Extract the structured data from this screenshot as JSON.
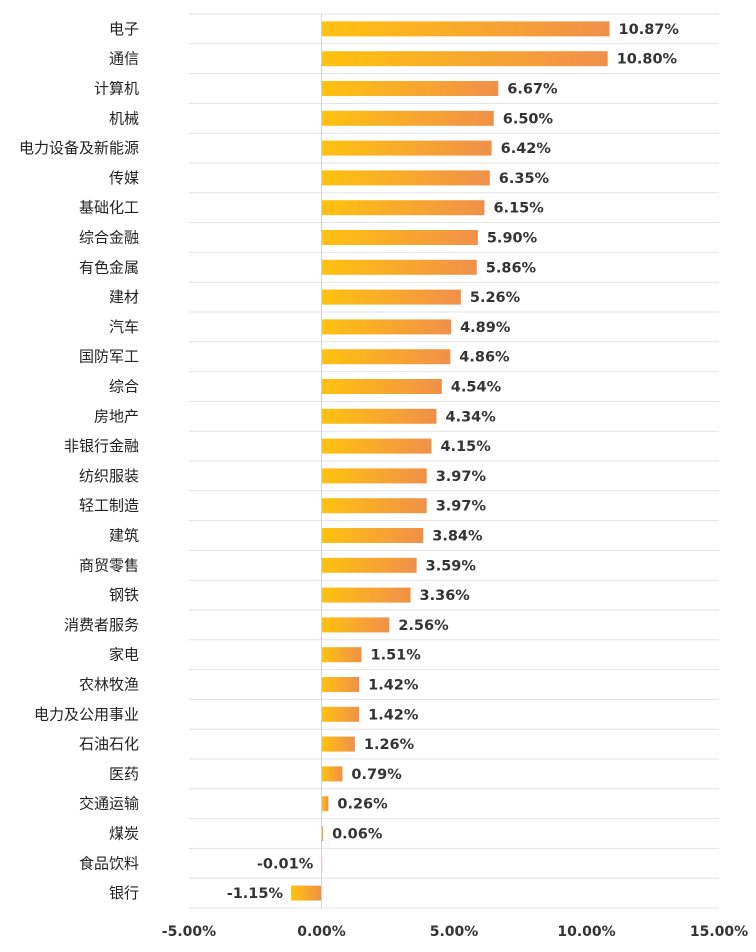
{
  "chart_data": {
    "type": "bar",
    "orientation": "horizontal",
    "title": "",
    "xlabel": "",
    "ylabel": "",
    "xlim": [
      -5,
      15
    ],
    "x_ticks": [
      -5,
      0,
      5,
      10,
      15
    ],
    "x_tick_labels": [
      "-5.00%",
      "0.00%",
      "5.00%",
      "10.00%",
      "15.00%"
    ],
    "categories": [
      "电子",
      "通信",
      "计算机",
      "机械",
      "电力设备及新能源",
      "传媒",
      "基础化工",
      "综合金融",
      "有色金属",
      "建材",
      "汽车",
      "国防军工",
      "综合",
      "房地产",
      "非银行金融",
      "纺织服装",
      "轻工制造",
      "建筑",
      "商贸零售",
      "钢铁",
      "消费者服务",
      "家电",
      "农林牧渔",
      "电力及公用事业",
      "石油石化",
      "医药",
      "交通运输",
      "煤炭",
      "食品饮料",
      "银行"
    ],
    "values": [
      10.87,
      10.8,
      6.67,
      6.5,
      6.42,
      6.35,
      6.15,
      5.9,
      5.86,
      5.26,
      4.89,
      4.86,
      4.54,
      4.34,
      4.15,
      3.97,
      3.97,
      3.84,
      3.59,
      3.36,
      2.56,
      1.51,
      1.42,
      1.42,
      1.26,
      0.79,
      0.26,
      0.06,
      -0.01,
      -1.15
    ],
    "value_labels": [
      "10.87%",
      "10.80%",
      "6.67%",
      "6.50%",
      "6.42%",
      "6.35%",
      "6.15%",
      "5.90%",
      "5.86%",
      "5.26%",
      "4.89%",
      "4.86%",
      "4.54%",
      "4.34%",
      "4.15%",
      "3.97%",
      "3.97%",
      "3.84%",
      "3.59%",
      "3.36%",
      "2.56%",
      "1.51%",
      "1.42%",
      "1.42%",
      "1.26%",
      "0.79%",
      "0.26%",
      "0.06%",
      "-0.01%",
      "-1.15%"
    ],
    "grid": true,
    "legend": "none",
    "colors": {
      "bar_start": "#FFC20E",
      "bar_end": "#F0904A",
      "grid": "#e3e3e3",
      "axis": "#d4d4d4",
      "text": "#333333"
    }
  }
}
